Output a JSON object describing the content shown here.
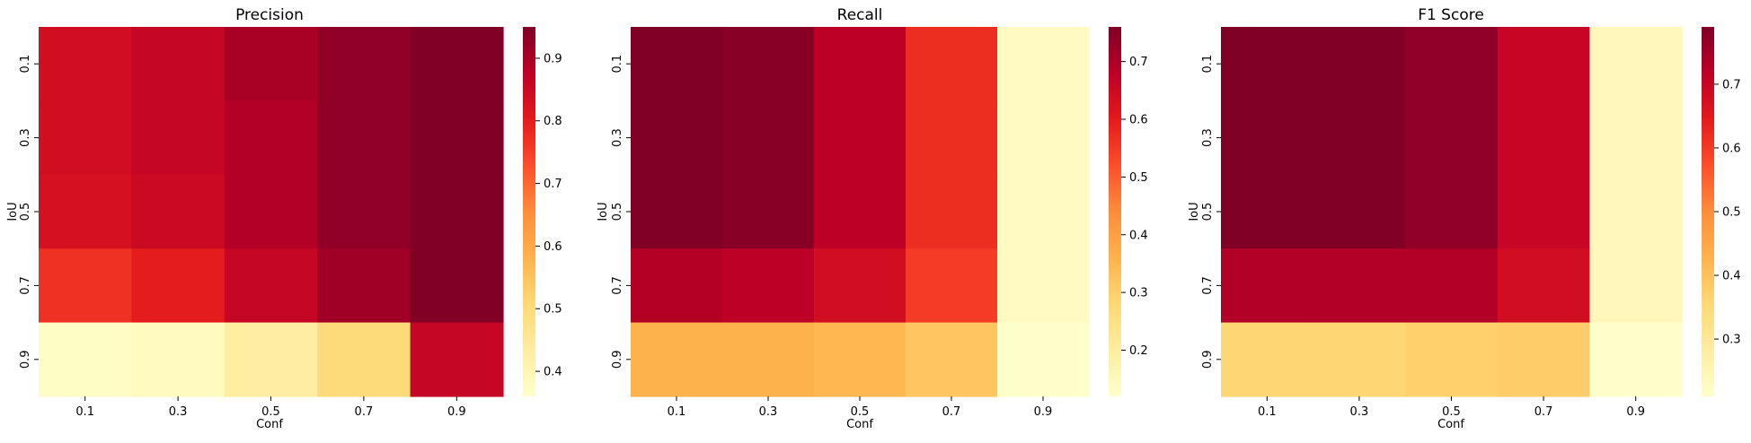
{
  "chart_data": [
    {
      "type": "heatmap",
      "title": "Precision",
      "xlabel": "Conf",
      "ylabel": "IoU",
      "x_categories": [
        "0.1",
        "0.3",
        "0.5",
        "0.7",
        "0.9"
      ],
      "y_categories": [
        "0.1",
        "0.3",
        "0.5",
        "0.7",
        "0.9"
      ],
      "values": [
        [
          0.84,
          0.86,
          0.9,
          0.93,
          0.95
        ],
        [
          0.84,
          0.86,
          0.89,
          0.93,
          0.95
        ],
        [
          0.83,
          0.85,
          0.89,
          0.93,
          0.95
        ],
        [
          0.77,
          0.8,
          0.86,
          0.91,
          0.95
        ],
        [
          0.37,
          0.38,
          0.43,
          0.5,
          0.86
        ]
      ],
      "colorbar": {
        "vmin": 0.36,
        "vmax": 0.95,
        "ticks": [
          "0.4",
          "0.5",
          "0.6",
          "0.7",
          "0.8",
          "0.9"
        ]
      },
      "colormap": "YlOrRd"
    },
    {
      "type": "heatmap",
      "title": "Recall",
      "xlabel": "Conf",
      "ylabel": "IoU",
      "x_categories": [
        "0.1",
        "0.3",
        "0.5",
        "0.7",
        "0.9"
      ],
      "y_categories": [
        "0.1",
        "0.3",
        "0.5",
        "0.7",
        "0.9"
      ],
      "values": [
        [
          0.76,
          0.75,
          0.68,
          0.57,
          0.14
        ],
        [
          0.76,
          0.75,
          0.68,
          0.57,
          0.14
        ],
        [
          0.76,
          0.75,
          0.68,
          0.57,
          0.14
        ],
        [
          0.69,
          0.68,
          0.64,
          0.55,
          0.14
        ],
        [
          0.36,
          0.36,
          0.35,
          0.32,
          0.12
        ]
      ],
      "colorbar": {
        "vmin": 0.12,
        "vmax": 0.76,
        "ticks": [
          "0.2",
          "0.3",
          "0.4",
          "0.5",
          "0.6",
          "0.7"
        ]
      },
      "colormap": "YlOrRd"
    },
    {
      "type": "heatmap",
      "title": "F1 Score",
      "xlabel": "Conf",
      "ylabel": "IoU",
      "x_categories": [
        "0.1",
        "0.3",
        "0.5",
        "0.7",
        "0.9"
      ],
      "y_categories": [
        "0.1",
        "0.3",
        "0.5",
        "0.7",
        "0.9"
      ],
      "values": [
        [
          0.79,
          0.79,
          0.77,
          0.7,
          0.24
        ],
        [
          0.79,
          0.79,
          0.77,
          0.7,
          0.24
        ],
        [
          0.79,
          0.79,
          0.77,
          0.7,
          0.24
        ],
        [
          0.73,
          0.73,
          0.73,
          0.68,
          0.24
        ],
        [
          0.36,
          0.36,
          0.37,
          0.38,
          0.21
        ]
      ],
      "colorbar": {
        "vmin": 0.21,
        "vmax": 0.79,
        "ticks": [
          "0.3",
          "0.4",
          "0.5",
          "0.6",
          "0.7"
        ]
      },
      "colormap": "YlOrRd"
    }
  ]
}
